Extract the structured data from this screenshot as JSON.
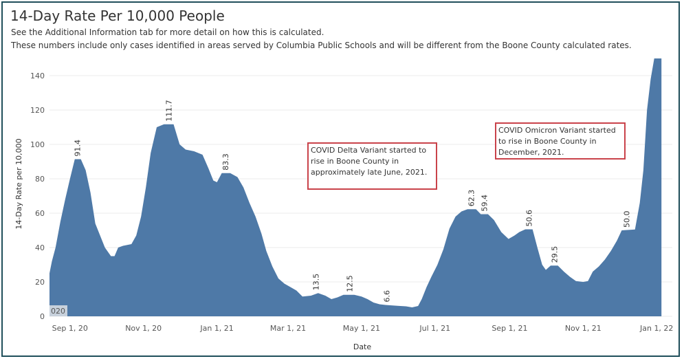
{
  "title": "14-Day Rate Per 10,000 People",
  "subtitle_1": "See the Additional Information tab for more detail on how this is calculated.",
  "subtitle_2": "These numbers include only cases identified in areas served by Columbia Public Schools and will be different from the Boone County calculated rates.",
  "annotations": {
    "delta": "COVID Delta Variant started to rise in Boone County in approximately late June, 2021.",
    "omicron": "COVID Omicron Variant started to rise in Boone County in December, 2021."
  },
  "colors": {
    "area": "#4e79a7",
    "grid": "#ebebeb",
    "annotation_border": "#c9424a",
    "frame": "#1f4e5a"
  },
  "chart_data": {
    "type": "area",
    "xlabel": "Date",
    "ylabel": "14-Day Rate per 10,000",
    "ylim": [
      0,
      150
    ],
    "xlim": [
      "2020-08-15",
      "2022-01-14"
    ],
    "yticks": [
      0,
      20,
      40,
      60,
      80,
      100,
      120,
      140
    ],
    "xticks": [
      {
        "date": "2020-09-01",
        "label": "Sep 1, 20"
      },
      {
        "date": "2020-11-01",
        "label": "Nov 1, 20"
      },
      {
        "date": "2021-01-01",
        "label": "Jan 1, 21"
      },
      {
        "date": "2021-03-01",
        "label": "Mar 1, 21"
      },
      {
        "date": "2021-05-01",
        "label": "May 1, 21"
      },
      {
        "date": "2021-07-01",
        "label": "Jul 1, 21"
      },
      {
        "date": "2021-09-01",
        "label": "Sep 1, 21"
      },
      {
        "date": "2021-11-01",
        "label": "Nov 1, 21"
      },
      {
        "date": "2022-01-01",
        "label": "Jan 1, 22"
      }
    ],
    "corner_label": "020",
    "series": [
      {
        "date": "2020-08-15",
        "value": 25
      },
      {
        "date": "2020-08-17",
        "value": 32
      },
      {
        "date": "2020-08-20",
        "value": 40
      },
      {
        "date": "2020-08-24",
        "value": 55
      },
      {
        "date": "2020-08-28",
        "value": 68
      },
      {
        "date": "2020-09-01",
        "value": 80
      },
      {
        "date": "2020-09-05",
        "value": 91.4
      },
      {
        "date": "2020-09-10",
        "value": 91.4
      },
      {
        "date": "2020-09-14",
        "value": 85
      },
      {
        "date": "2020-09-18",
        "value": 72
      },
      {
        "date": "2020-09-22",
        "value": 54
      },
      {
        "date": "2020-09-26",
        "value": 47
      },
      {
        "date": "2020-09-30",
        "value": 40
      },
      {
        "date": "2020-10-05",
        "value": 35
      },
      {
        "date": "2020-10-08",
        "value": 35
      },
      {
        "date": "2020-10-11",
        "value": 40
      },
      {
        "date": "2020-10-15",
        "value": 41
      },
      {
        "date": "2020-10-22",
        "value": 42
      },
      {
        "date": "2020-10-26",
        "value": 47
      },
      {
        "date": "2020-10-30",
        "value": 58
      },
      {
        "date": "2020-11-03",
        "value": 75
      },
      {
        "date": "2020-11-07",
        "value": 95
      },
      {
        "date": "2020-11-12",
        "value": 110
      },
      {
        "date": "2020-11-18",
        "value": 111.7
      },
      {
        "date": "2020-11-26",
        "value": 111.7
      },
      {
        "date": "2020-12-01",
        "value": 100
      },
      {
        "date": "2020-12-06",
        "value": 97
      },
      {
        "date": "2020-12-13",
        "value": 96
      },
      {
        "date": "2020-12-20",
        "value": 94
      },
      {
        "date": "2020-12-25",
        "value": 86
      },
      {
        "date": "2020-12-29",
        "value": 79
      },
      {
        "date": "2021-01-01",
        "value": 78
      },
      {
        "date": "2021-01-05",
        "value": 83.3
      },
      {
        "date": "2021-01-12",
        "value": 83.3
      },
      {
        "date": "2021-01-18",
        "value": 81
      },
      {
        "date": "2021-01-23",
        "value": 75
      },
      {
        "date": "2021-01-28",
        "value": 66
      },
      {
        "date": "2021-02-02",
        "value": 58
      },
      {
        "date": "2021-02-07",
        "value": 48
      },
      {
        "date": "2021-02-11",
        "value": 38
      },
      {
        "date": "2021-02-16",
        "value": 29
      },
      {
        "date": "2021-02-21",
        "value": 22
      },
      {
        "date": "2021-02-26",
        "value": 19
      },
      {
        "date": "2021-03-03",
        "value": 17
      },
      {
        "date": "2021-03-08",
        "value": 15
      },
      {
        "date": "2021-03-13",
        "value": 11.5
      },
      {
        "date": "2021-03-20",
        "value": 12
      },
      {
        "date": "2021-03-26",
        "value": 13.5
      },
      {
        "date": "2021-04-01",
        "value": 12
      },
      {
        "date": "2021-04-06",
        "value": 10
      },
      {
        "date": "2021-04-11",
        "value": 11
      },
      {
        "date": "2021-04-16",
        "value": 12.5
      },
      {
        "date": "2021-04-25",
        "value": 12.5
      },
      {
        "date": "2021-05-01",
        "value": 11.5
      },
      {
        "date": "2021-05-06",
        "value": 10
      },
      {
        "date": "2021-05-11",
        "value": 8
      },
      {
        "date": "2021-05-16",
        "value": 7
      },
      {
        "date": "2021-05-21",
        "value": 6.6
      },
      {
        "date": "2021-05-31",
        "value": 6.1
      },
      {
        "date": "2021-06-07",
        "value": 5.8
      },
      {
        "date": "2021-06-12",
        "value": 5.2
      },
      {
        "date": "2021-06-17",
        "value": 6
      },
      {
        "date": "2021-06-20",
        "value": 10
      },
      {
        "date": "2021-06-24",
        "value": 17
      },
      {
        "date": "2021-06-28",
        "value": 23
      },
      {
        "date": "2021-07-03",
        "value": 30
      },
      {
        "date": "2021-07-08",
        "value": 39
      },
      {
        "date": "2021-07-13",
        "value": 51
      },
      {
        "date": "2021-07-18",
        "value": 58
      },
      {
        "date": "2021-07-23",
        "value": 61
      },
      {
        "date": "2021-07-28",
        "value": 62.3
      },
      {
        "date": "2021-08-04",
        "value": 62.3
      },
      {
        "date": "2021-08-08",
        "value": 59.4
      },
      {
        "date": "2021-08-14",
        "value": 59.4
      },
      {
        "date": "2021-08-19",
        "value": 56
      },
      {
        "date": "2021-08-25",
        "value": 49
      },
      {
        "date": "2021-08-31",
        "value": 45
      },
      {
        "date": "2021-09-05",
        "value": 47
      },
      {
        "date": "2021-09-09",
        "value": 49
      },
      {
        "date": "2021-09-14",
        "value": 50.6
      },
      {
        "date": "2021-09-20",
        "value": 50.6
      },
      {
        "date": "2021-09-24",
        "value": 40
      },
      {
        "date": "2021-09-28",
        "value": 30
      },
      {
        "date": "2021-10-01",
        "value": 27
      },
      {
        "date": "2021-10-05",
        "value": 29.5
      },
      {
        "date": "2021-10-11",
        "value": 29.5
      },
      {
        "date": "2021-10-16",
        "value": 26
      },
      {
        "date": "2021-10-21",
        "value": 23
      },
      {
        "date": "2021-10-26",
        "value": 20.5
      },
      {
        "date": "2021-11-01",
        "value": 20
      },
      {
        "date": "2021-11-05",
        "value": 20.5
      },
      {
        "date": "2021-11-09",
        "value": 26
      },
      {
        "date": "2021-11-14",
        "value": 29
      },
      {
        "date": "2021-11-19",
        "value": 33
      },
      {
        "date": "2021-11-24",
        "value": 38
      },
      {
        "date": "2021-11-29",
        "value": 44
      },
      {
        "date": "2021-12-03",
        "value": 50
      },
      {
        "date": "2021-12-14",
        "value": 50.5
      },
      {
        "date": "2021-12-18",
        "value": 66
      },
      {
        "date": "2021-12-21",
        "value": 85
      },
      {
        "date": "2021-12-24",
        "value": 120
      },
      {
        "date": "2021-12-27",
        "value": 138
      },
      {
        "date": "2021-12-30",
        "value": 150
      },
      {
        "date": "2022-01-05",
        "value": 150
      }
    ],
    "data_labels": [
      {
        "date": "2020-09-07",
        "value": 91.4,
        "text": "91.4"
      },
      {
        "date": "2020-11-22",
        "value": 111.7,
        "text": "111.7"
      },
      {
        "date": "2021-01-08",
        "value": 83.3,
        "text": "83.3"
      },
      {
        "date": "2021-03-24",
        "value": 13.5,
        "text": "13.5"
      },
      {
        "date": "2021-04-21",
        "value": 12.5,
        "text": "12.5"
      },
      {
        "date": "2021-05-22",
        "value": 6.6,
        "text": "6.6"
      },
      {
        "date": "2021-07-31",
        "value": 62.3,
        "text": "62.3"
      },
      {
        "date": "2021-08-11",
        "value": 59.4,
        "text": "59.4"
      },
      {
        "date": "2021-09-17",
        "value": 50.6,
        "text": "50.6"
      },
      {
        "date": "2021-10-08",
        "value": 29.5,
        "text": "29.5"
      },
      {
        "date": "2021-12-07",
        "value": 50.0,
        "text": "50.0"
      }
    ]
  }
}
